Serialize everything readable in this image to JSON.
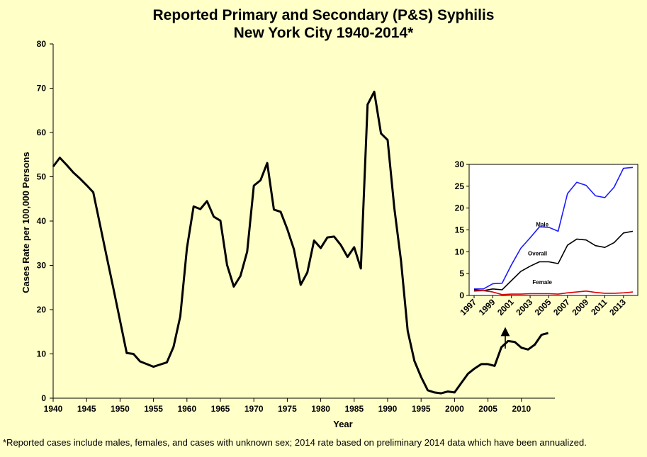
{
  "chart_data": [
    {
      "type": "line",
      "title": "Reported Primary and Secondary (P&S) Syphilis",
      "subtitle": "New York City 1940-2014*",
      "xlabel": "Year",
      "ylabel": "Cases Rate per 100,000 Persons",
      "xlim": [
        1940,
        2015
      ],
      "ylim": [
        0,
        80
      ],
      "x_ticks": [
        1940,
        1945,
        1950,
        1955,
        1960,
        1965,
        1970,
        1975,
        1980,
        1985,
        1990,
        1995,
        2000,
        2005,
        2010
      ],
      "y_ticks": [
        0,
        10,
        20,
        30,
        40,
        50,
        60,
        70,
        80
      ],
      "series": [
        {
          "name": "Overall",
          "x": [
            1940,
            1941,
            1942,
            1943,
            1944,
            1945,
            1946,
            1947,
            1948,
            1949,
            1950,
            1951,
            1952,
            1953,
            1954,
            1955,
            1956,
            1957,
            1958,
            1959,
            1960,
            1961,
            1962,
            1963,
            1964,
            1965,
            1966,
            1967,
            1968,
            1969,
            1970,
            1971,
            1972,
            1973,
            1974,
            1975,
            1976,
            1977,
            1978,
            1979,
            1980,
            1981,
            1982,
            1983,
            1984,
            1985,
            1986,
            1987,
            1988,
            1989,
            1990,
            1991,
            1992,
            1993,
            1994,
            1995,
            1996,
            1997,
            1998,
            1999,
            2000,
            2001,
            2002,
            2003,
            2004,
            2005,
            2006,
            2007,
            2008,
            2009,
            2010,
            2011,
            2012,
            2013,
            2014
          ],
          "values": [
            52.3,
            54.3,
            52.7,
            51.0,
            49.6,
            48.1,
            46.5,
            39.2,
            32.0,
            24.8,
            17.5,
            10.2,
            10.0,
            8.3,
            7.7,
            7.1,
            7.6,
            8.1,
            11.6,
            18.5,
            33.9,
            43.3,
            42.7,
            44.5,
            41.0,
            40.1,
            30.1,
            25.2,
            27.6,
            33.1,
            48.0,
            49.2,
            53.1,
            42.6,
            42.1,
            38.2,
            33.6,
            25.6,
            28.4,
            35.6,
            33.9,
            36.3,
            36.5,
            34.6,
            31.9,
            34.1,
            29.3,
            66.3,
            69.2,
            59.8,
            58.3,
            43.0,
            31.0,
            15.2,
            8.4,
            4.8,
            1.8,
            1.3,
            1.1,
            1.5,
            1.3,
            3.4,
            5.5,
            6.7,
            7.7,
            7.7,
            7.3,
            11.5,
            12.9,
            12.7,
            11.4,
            11.0,
            12.1,
            14.3,
            14.7
          ]
        }
      ]
    },
    {
      "type": "line",
      "title": "",
      "xlim": [
        1997,
        2014
      ],
      "ylim": [
        0,
        30
      ],
      "x_ticks": [
        1997,
        1999,
        2001,
        2003,
        2005,
        2007,
        2009,
        2011,
        2013
      ],
      "y_ticks": [
        0,
        5,
        10,
        15,
        20,
        25,
        30
      ],
      "series": [
        {
          "name": "Male",
          "color": "#1a1aff",
          "label_x": 2004.3,
          "label_y": 15.8,
          "x": [
            1997,
            1998,
            1999,
            2000,
            2001,
            2002,
            2003,
            2004,
            2005,
            2006,
            2007,
            2008,
            2009,
            2010,
            2011,
            2012,
            2013,
            2014
          ],
          "values": [
            1.5,
            1.5,
            2.7,
            2.8,
            7.0,
            10.8,
            13.2,
            15.7,
            15.6,
            14.7,
            23.3,
            25.9,
            25.2,
            22.8,
            22.4,
            24.8,
            29.1,
            29.3
          ]
        },
        {
          "name": "Overall",
          "color": "#000000",
          "label_x": 2003.8,
          "label_y": 9.2,
          "x": [
            1997,
            1998,
            1999,
            2000,
            2001,
            2002,
            2003,
            2004,
            2005,
            2006,
            2007,
            2008,
            2009,
            2010,
            2011,
            2012,
            2013,
            2014
          ],
          "values": [
            1.3,
            1.1,
            1.5,
            1.3,
            3.4,
            5.5,
            6.7,
            7.7,
            7.7,
            7.3,
            11.5,
            12.9,
            12.7,
            11.4,
            11.0,
            12.1,
            14.3,
            14.7
          ]
        },
        {
          "name": "Female",
          "color": "#e00000",
          "label_x": 2004.3,
          "label_y": 2.6,
          "x": [
            1997,
            1998,
            1999,
            2000,
            2001,
            2002,
            2003,
            2004,
            2005,
            2006,
            2007,
            2008,
            2009,
            2010,
            2011,
            2012,
            2013,
            2014
          ],
          "values": [
            1.0,
            1.1,
            0.8,
            0.2,
            0.3,
            0.3,
            0.4,
            0.4,
            0.4,
            0.3,
            0.6,
            0.8,
            1.0,
            0.7,
            0.5,
            0.5,
            0.6,
            0.8
          ]
        }
      ]
    }
  ],
  "footnote": "*Reported cases include males, females, and cases with unknown sex; 2014 rate based on preliminary 2014 data which have been annualized."
}
